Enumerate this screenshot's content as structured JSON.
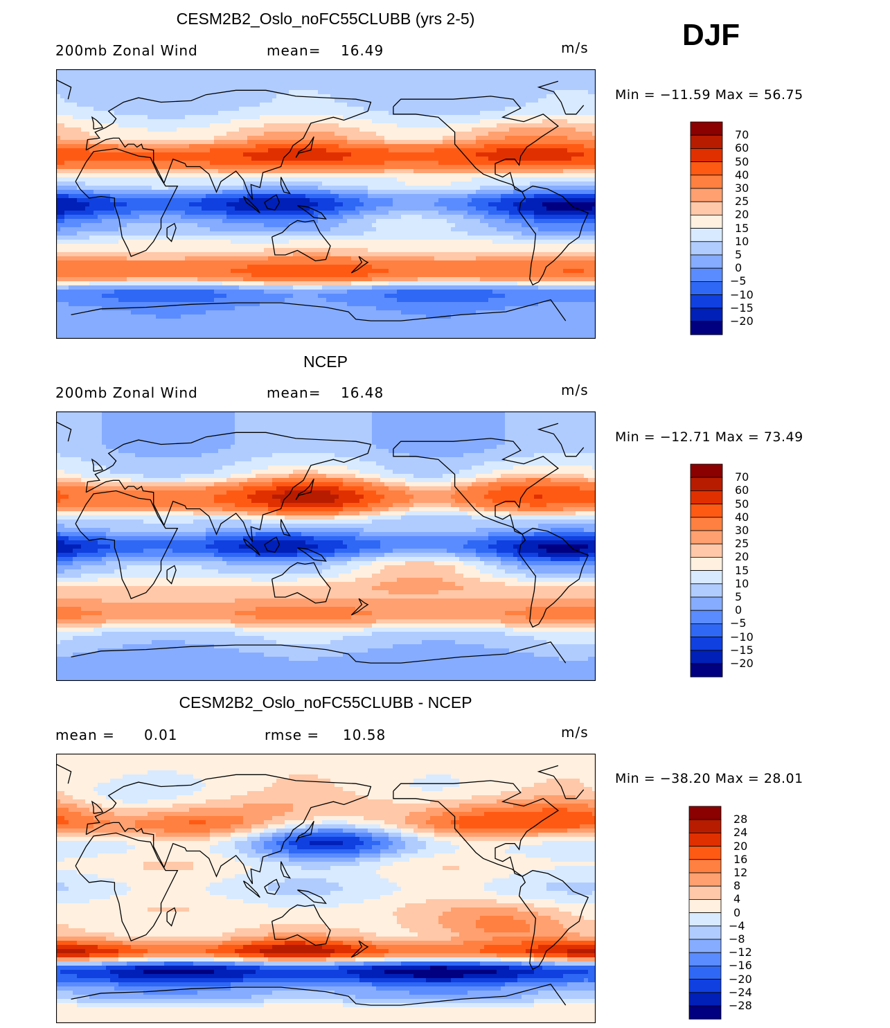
{
  "season": "DJF",
  "panels": [
    {
      "title": "CESM2B2_Oslo_noFC55CLUBB (yrs 2-5)",
      "left_label": "200mb Zonal Wind",
      "stat_label": "mean=",
      "stat_value": "16.49",
      "units": "m/s",
      "minmax": "Min = −11.59 Max =   56.75",
      "colorbar": {
        "levels": [
          "70",
          "60",
          "50",
          "40",
          "30",
          "25",
          "20",
          "15",
          "10",
          "5",
          "0",
          "−5",
          "−10",
          "−15",
          "−20"
        ],
        "colors": [
          "#8b0000",
          "#b81c00",
          "#e03000",
          "#ff5a14",
          "#ff8040",
          "#ffa070",
          "#ffc8a8",
          "#fff0e0",
          "#d8eaff",
          "#b0ccff",
          "#86acff",
          "#5b8cff",
          "#2f68f5",
          "#1040e0",
          "#0020b8",
          "#000080"
        ]
      },
      "fields": {
        "bands": [
          {
            "lat": 70,
            "u": 8
          },
          {
            "lat": 45,
            "u": 18
          },
          {
            "lat": 32,
            "u": 42
          },
          {
            "lat": 15,
            "u": 12
          },
          {
            "lat": 0,
            "u": -10
          },
          {
            "lat": -15,
            "u": 5
          },
          {
            "lat": -30,
            "u": 18
          },
          {
            "lat": -45,
            "u": 38
          },
          {
            "lat": -60,
            "u": -5
          },
          {
            "lat": -75,
            "u": 2
          }
        ],
        "blobs": [
          {
            "lon": 130,
            "lat": 35,
            "u": 14
          },
          {
            "lon": -75,
            "lat": 38,
            "u": 16
          },
          {
            "lon": 110,
            "lat": -2,
            "u": -8
          },
          {
            "lon": -50,
            "lat": -5,
            "u": -10
          },
          {
            "lon": -160,
            "lat": -5,
            "u": 10
          },
          {
            "lon": 140,
            "lat": -45,
            "u": 8
          }
        ]
      }
    },
    {
      "title": "NCEP",
      "left_label": "200mb Zonal Wind",
      "stat_label": "mean=",
      "stat_value": "16.48",
      "units": "m/s",
      "minmax": "Min = −12.71 Max =   73.49",
      "colorbar": {
        "levels": [
          "70",
          "60",
          "50",
          "40",
          "30",
          "25",
          "20",
          "15",
          "10",
          "5",
          "0",
          "−5",
          "−10",
          "−15",
          "−20"
        ],
        "colors": [
          "#8b0000",
          "#b81c00",
          "#e03000",
          "#ff5a14",
          "#ff8040",
          "#ffa070",
          "#ffc8a8",
          "#fff0e0",
          "#d8eaff",
          "#b0ccff",
          "#86acff",
          "#5b8cff",
          "#2f68f5",
          "#1040e0",
          "#0020b8",
          "#000080"
        ]
      },
      "fields": {
        "bands": [
          {
            "lat": 70,
            "u": 5
          },
          {
            "lat": 50,
            "u": 10
          },
          {
            "lat": 32,
            "u": 35
          },
          {
            "lat": 15,
            "u": 8
          },
          {
            "lat": 0,
            "u": -8
          },
          {
            "lat": -15,
            "u": 10
          },
          {
            "lat": -30,
            "u": 22
          },
          {
            "lat": -45,
            "u": 30
          },
          {
            "lat": -62,
            "u": 8
          },
          {
            "lat": -75,
            "u": 3
          }
        ],
        "blobs": [
          {
            "lon": 140,
            "lat": 33,
            "u": 32
          },
          {
            "lon": -75,
            "lat": 37,
            "u": 18
          },
          {
            "lon": 110,
            "lat": 0,
            "u": -8
          },
          {
            "lon": -55,
            "lat": -5,
            "u": -12
          },
          {
            "lon": -140,
            "lat": 30,
            "u": -12
          },
          {
            "lon": -150,
            "lat": -15,
            "u": 12
          }
        ]
      }
    },
    {
      "title": "CESM2B2_Oslo_noFC55CLUBB - NCEP",
      "left_label": "mean =",
      "left_value": "0.01",
      "stat_label": "rmse =",
      "stat_value": "10.58",
      "units": "m/s",
      "minmax": "Min = −38.20 Max =   28.01",
      "colorbar": {
        "levels": [
          "28",
          "24",
          "20",
          "16",
          "12",
          "8",
          "4",
          "0",
          "−4",
          "−8",
          "−12",
          "−16",
          "−20",
          "−24",
          "−28"
        ],
        "colors": [
          "#8b0000",
          "#b81c00",
          "#e03000",
          "#ff5a14",
          "#ff8040",
          "#ffa070",
          "#ffc8a8",
          "#fff0e0",
          "#d8eaff",
          "#b0ccff",
          "#86acff",
          "#5b8cff",
          "#2f68f5",
          "#1040e0",
          "#0020b8",
          "#000080"
        ]
      },
      "fields": {
        "bands": [
          {
            "lat": 70,
            "u": 2
          },
          {
            "lat": 45,
            "u": 8
          },
          {
            "lat": 30,
            "u": -4
          },
          {
            "lat": 15,
            "u": 2
          },
          {
            "lat": 0,
            "u": -2
          },
          {
            "lat": -15,
            "u": 2
          },
          {
            "lat": -30,
            "u": 1
          },
          {
            "lat": -42,
            "u": 14
          },
          {
            "lat": -55,
            "u": -28
          },
          {
            "lat": -70,
            "u": -10
          },
          {
            "lat": -82,
            "u": 2
          }
        ],
        "blobs": [
          {
            "lon": 150,
            "lat": 32,
            "u": -22
          },
          {
            "lon": 0,
            "lat": 55,
            "u": -8
          },
          {
            "lon": 60,
            "lat": 40,
            "u": 12
          },
          {
            "lon": -110,
            "lat": 42,
            "u": 12
          },
          {
            "lon": -30,
            "lat": 48,
            "u": 10
          },
          {
            "lon": 130,
            "lat": -40,
            "u": 12
          },
          {
            "lon": -20,
            "lat": -45,
            "u": 10
          },
          {
            "lon": -90,
            "lat": -25,
            "u": 12
          }
        ]
      }
    }
  ]
}
